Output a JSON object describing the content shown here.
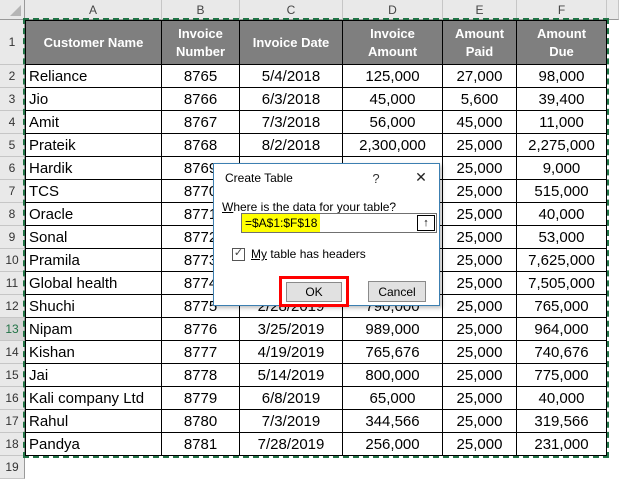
{
  "grid": {
    "column_letters": [
      "A",
      "B",
      "C",
      "D",
      "E",
      "F"
    ],
    "row_numbers": [
      "1",
      "2",
      "3",
      "4",
      "5",
      "6",
      "7",
      "8",
      "9",
      "10",
      "11",
      "12",
      "13",
      "14",
      "15",
      "16",
      "17",
      "18",
      "19"
    ],
    "active_row_number": "13",
    "header_row": [
      [
        "Customer Name"
      ],
      [
        "Invoice",
        "Number"
      ],
      [
        "Invoice Date"
      ],
      [
        "Invoice",
        "Amount"
      ],
      [
        "Amount",
        "Paid"
      ],
      [
        "Amount",
        "Due"
      ]
    ],
    "rows": [
      [
        "Reliance",
        "8765",
        "5/4/2018",
        "125,000",
        "27,000",
        "98,000"
      ],
      [
        "Jio",
        "8766",
        "6/3/2018",
        "45,000",
        "5,600",
        "39,400"
      ],
      [
        "Amit",
        "8767",
        "7/3/2018",
        "56,000",
        "45,000",
        "11,000"
      ],
      [
        "Prateik",
        "8768",
        "8/2/2018",
        "2,300,000",
        "25,000",
        "2,275,000"
      ],
      [
        "Hardik",
        "8769",
        "",
        "",
        "25,000",
        "9,000"
      ],
      [
        "TCS",
        "8770",
        "",
        "",
        "25,000",
        "515,000"
      ],
      [
        "Oracle",
        "8771",
        "",
        "",
        "25,000",
        "40,000"
      ],
      [
        "Sonal",
        "8772",
        "",
        "",
        "25,000",
        "53,000"
      ],
      [
        "Pramila",
        "8773",
        "",
        "",
        "25,000",
        "7,625,000"
      ],
      [
        "Global health",
        "8774",
        "",
        "",
        "25,000",
        "7,505,000"
      ],
      [
        "Shuchi",
        "8775",
        "2/28/2019",
        "790,000",
        "25,000",
        "765,000"
      ],
      [
        "Nipam",
        "8776",
        "3/25/2019",
        "989,000",
        "25,000",
        "964,000"
      ],
      [
        "Kishan",
        "8777",
        "4/19/2019",
        "765,676",
        "25,000",
        "740,676"
      ],
      [
        "Jai",
        "8778",
        "5/14/2019",
        "800,000",
        "25,000",
        "775,000"
      ],
      [
        "Kali company Ltd",
        "8779",
        "6/8/2019",
        "65,000",
        "25,000",
        "40,000"
      ],
      [
        "Rahul",
        "8780",
        "7/3/2019",
        "344,566",
        "25,000",
        "319,566"
      ],
      [
        "Pandya",
        "8781",
        "7/28/2019",
        "256,000",
        "25,000",
        "231,000"
      ]
    ],
    "selected_range": "A1:F18"
  },
  "dialog": {
    "title": "Create Table",
    "help_icon": "?",
    "close_icon": "✕",
    "prompt_accel": "W",
    "prompt_rest": "here is the data for your table?",
    "range_value": "=$A$1:$F$18",
    "range_picker_icon": "↑",
    "checkbox_checked": true,
    "checkmark": "✓",
    "checkbox_accel": "My",
    "checkbox_rest": " table has headers",
    "ok_label": "OK",
    "cancel_label": "Cancel"
  },
  "colors": {
    "header_fill": "#7f7f7f",
    "header_text": "#ffffff",
    "grid_line": "#000000",
    "selection_marquee_green": "#217346",
    "active_row_text_green": "#217346",
    "range_highlight_yellow": "#ffff00",
    "annotation_red": "#ff0000",
    "dialog_border_blue": "#3c7fb1",
    "button_face": "#e1e1e1"
  }
}
